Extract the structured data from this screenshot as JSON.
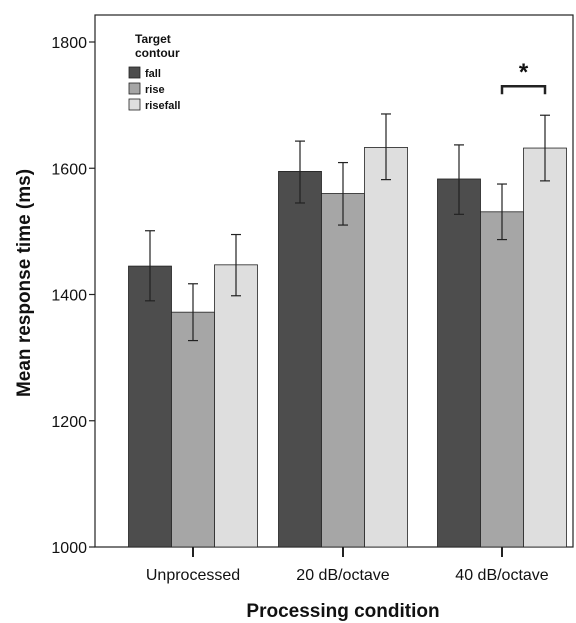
{
  "chart_data": {
    "type": "bar",
    "title": "",
    "xlabel": "Processing condition",
    "ylabel": "Mean response time (ms)",
    "ylim": [
      1000,
      1800
    ],
    "yticks": [
      1000,
      1200,
      1400,
      1600,
      1800
    ],
    "categories": [
      "Unprocessed",
      "20 dB/octave",
      "40 dB/octave"
    ],
    "legend": {
      "title": "Target contour",
      "title_lines": [
        "Target",
        "contour"
      ],
      "placement": "top-left"
    },
    "series": [
      {
        "name": "fall",
        "color": "#4d4d4d",
        "values": [
          1445,
          1595,
          1583
        ],
        "err_low": [
          1390,
          1545,
          1527
        ],
        "err_high": [
          1501,
          1643,
          1637
        ]
      },
      {
        "name": "rise",
        "color": "#a6a6a6",
        "values": [
          1372,
          1560,
          1531
        ],
        "err_low": [
          1327,
          1510,
          1487
        ],
        "err_high": [
          1417,
          1609,
          1575
        ]
      },
      {
        "name": "risefall",
        "color": "#dedede",
        "values": [
          1447,
          1633,
          1632
        ],
        "err_low": [
          1398,
          1582,
          1580
        ],
        "err_high": [
          1495,
          1686,
          1684
        ]
      }
    ],
    "annotations": [
      {
        "text": "*",
        "category": "40 dB/octave",
        "between": [
          "rise",
          "risefall"
        ],
        "y": 1730
      }
    ],
    "grid": false
  }
}
